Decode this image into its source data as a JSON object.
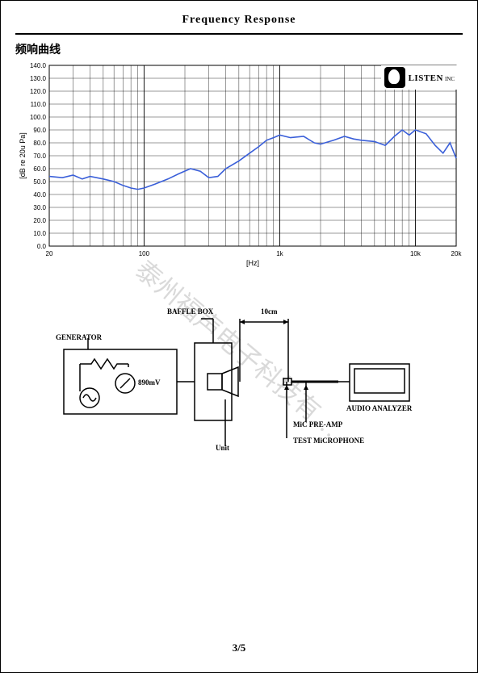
{
  "title": "Frequency   Response",
  "section_label": "频响曲线",
  "watermark": "泰州福声电子科技有…",
  "page_number": "3/5",
  "logo": {
    "text": "LISTEN",
    "sub": "INC"
  },
  "chart": {
    "type": "line",
    "xaxis_label": "[Hz]",
    "yaxis_label": "[dB re 20u Pa]",
    "x_scale": "log",
    "x_min": 20,
    "x_max": 20000,
    "y_min": 0,
    "y_max": 140,
    "y_tick_step": 10,
    "x_major_ticks": [
      20,
      100,
      1000,
      10000,
      20000
    ],
    "x_major_labels": [
      "20",
      "100",
      "1k",
      "10k",
      "20k"
    ],
    "line_color": "#3a5fd9",
    "line_width": 1.6,
    "grid_color": "#000000",
    "grid_width": 0.4,
    "background_color": "#ffffff",
    "tick_fontsize": 8,
    "label_fontsize": 9,
    "series": [
      {
        "x": 20,
        "y": 54
      },
      {
        "x": 25,
        "y": 53
      },
      {
        "x": 30,
        "y": 55
      },
      {
        "x": 35,
        "y": 52
      },
      {
        "x": 40,
        "y": 54
      },
      {
        "x": 50,
        "y": 52
      },
      {
        "x": 60,
        "y": 50
      },
      {
        "x": 70,
        "y": 47
      },
      {
        "x": 80,
        "y": 45
      },
      {
        "x": 90,
        "y": 44
      },
      {
        "x": 100,
        "y": 45
      },
      {
        "x": 120,
        "y": 48
      },
      {
        "x": 150,
        "y": 52
      },
      {
        "x": 180,
        "y": 56
      },
      {
        "x": 220,
        "y": 60
      },
      {
        "x": 260,
        "y": 58
      },
      {
        "x": 300,
        "y": 53
      },
      {
        "x": 350,
        "y": 54
      },
      {
        "x": 400,
        "y": 60
      },
      {
        "x": 500,
        "y": 66
      },
      {
        "x": 600,
        "y": 72
      },
      {
        "x": 700,
        "y": 77
      },
      {
        "x": 800,
        "y": 82
      },
      {
        "x": 900,
        "y": 84
      },
      {
        "x": 1000,
        "y": 86
      },
      {
        "x": 1200,
        "y": 84
      },
      {
        "x": 1500,
        "y": 85
      },
      {
        "x": 1800,
        "y": 80
      },
      {
        "x": 2000,
        "y": 79
      },
      {
        "x": 2500,
        "y": 82
      },
      {
        "x": 3000,
        "y": 85
      },
      {
        "x": 3500,
        "y": 83
      },
      {
        "x": 4000,
        "y": 82
      },
      {
        "x": 5000,
        "y": 81
      },
      {
        "x": 6000,
        "y": 78
      },
      {
        "x": 7000,
        "y": 85
      },
      {
        "x": 8000,
        "y": 90
      },
      {
        "x": 9000,
        "y": 86
      },
      {
        "x": 10000,
        "y": 90
      },
      {
        "x": 12000,
        "y": 87
      },
      {
        "x": 14000,
        "y": 78
      },
      {
        "x": 16000,
        "y": 72
      },
      {
        "x": 18000,
        "y": 80
      },
      {
        "x": 20000,
        "y": 68
      }
    ]
  },
  "diagram": {
    "labels": {
      "generator": "GENERATOR",
      "baffle_box": "BAFFLE BOX",
      "unit": "Unit",
      "distance": "10cm",
      "analyzer": "AUDIO ANALYZER",
      "preamp": "MiC PRE-AMP",
      "microphone": "TEST MiCROPHONE",
      "voltage": "890mV"
    },
    "stroke_color": "#000000",
    "stroke_width": 1.5,
    "label_fontsize": 9
  }
}
